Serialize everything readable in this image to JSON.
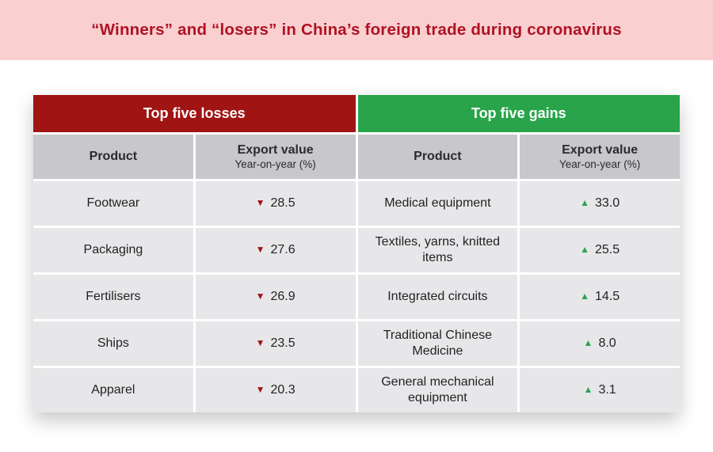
{
  "banner": {
    "title": "“Winners” and “losers” in China’s foreign trade during coronavirus"
  },
  "icons": {
    "down": "▼",
    "up": "▲"
  },
  "columns": {
    "product": "Product",
    "value": "Export value",
    "value_sub": "Year-on-year (%)"
  },
  "losses": {
    "header": "Top five losses",
    "rows": [
      {
        "product": "Footwear",
        "value": "28.5"
      },
      {
        "product": "Packaging",
        "value": "27.6"
      },
      {
        "product": "Fertilisers",
        "value": "26.9"
      },
      {
        "product": "Ships",
        "value": "23.5"
      },
      {
        "product": "Apparel",
        "value": "20.3"
      }
    ]
  },
  "gains": {
    "header": "Top five gains",
    "rows": [
      {
        "product": "Medical equipment",
        "value": "33.0"
      },
      {
        "product": "Textiles, yarns, knitted items",
        "value": "25.5"
      },
      {
        "product": "Integrated circuits",
        "value": "14.5"
      },
      {
        "product": "Traditional Chinese Medicine",
        "value": "8.0"
      },
      {
        "product": "General mechanical equipment",
        "value": "3.1"
      }
    ]
  },
  "colors": {
    "banner_bg": "#f9cfcf",
    "title": "#b01224",
    "losses": "#a11414",
    "gains": "#2aa44a"
  },
  "chart_data": {
    "type": "table",
    "title": "“Winners” and “losers” in China’s foreign trade during coronavirus",
    "tables": [
      {
        "title": "Top five losses",
        "columns": [
          "Product",
          "Export value Year-on-year (%)"
        ],
        "rows": [
          [
            "Footwear",
            -28.5
          ],
          [
            "Packaging",
            -27.6
          ],
          [
            "Fertilisers",
            -26.9
          ],
          [
            "Ships",
            -23.5
          ],
          [
            "Apparel",
            -20.3
          ]
        ]
      },
      {
        "title": "Top five gains",
        "columns": [
          "Product",
          "Export value Year-on-year (%)"
        ],
        "rows": [
          [
            "Medical equipment",
            33.0
          ],
          [
            "Textiles, yarns, knitted items",
            25.5
          ],
          [
            "Integrated circuits",
            14.5
          ],
          [
            "Traditional Chinese Medicine",
            8.0
          ],
          [
            "General mechanical equipment",
            3.1
          ]
        ]
      }
    ]
  }
}
